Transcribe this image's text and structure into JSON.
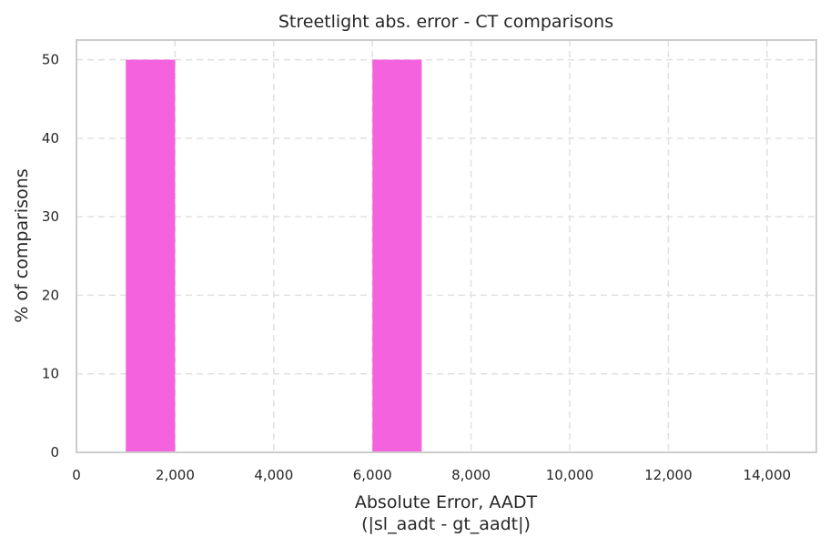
{
  "chart_data": {
    "type": "bar",
    "title": "Streetlight abs. error - CT comparisons",
    "xlabel_lines": [
      "Absolute Error, AADT",
      "(|sl_aadt - gt_aadt|)"
    ],
    "ylabel": "% of comparisons",
    "xlim": [
      0,
      15000
    ],
    "ylim": [
      0,
      52.5
    ],
    "x_ticks": [
      0,
      2000,
      4000,
      6000,
      8000,
      10000,
      12000,
      14000
    ],
    "x_tick_labels": [
      "0",
      "2,000",
      "4,000",
      "6,000",
      "8,000",
      "10,000",
      "12,000",
      "14,000"
    ],
    "y_ticks": [
      0,
      10,
      20,
      30,
      40,
      50
    ],
    "y_tick_labels": [
      "0",
      "10",
      "20",
      "30",
      "40",
      "50"
    ],
    "grid": true,
    "bins": [
      {
        "x0": 1000,
        "x1": 2000,
        "value": 50
      },
      {
        "x0": 6000,
        "x1": 7000,
        "value": 50
      }
    ],
    "bar_color": "#f463dd",
    "grid_color": "#e0e0e0",
    "frame_color": "#cccccc"
  }
}
